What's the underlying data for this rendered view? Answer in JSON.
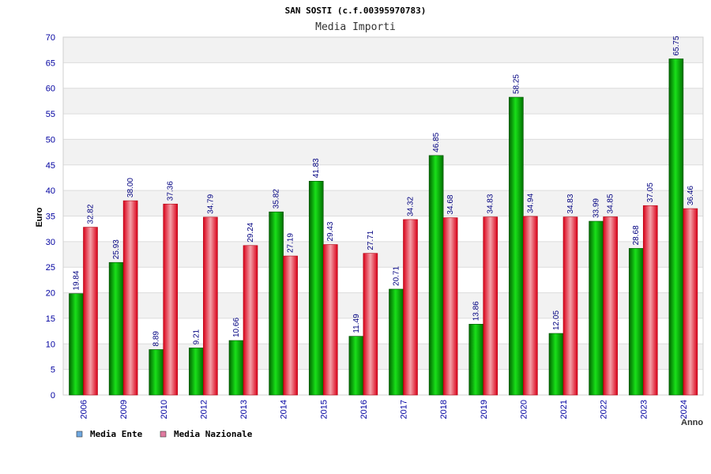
{
  "chart_data": {
    "type": "bar",
    "title": "SAN SOSTI (c.f.00395970783)",
    "subtitle": "Media Importi",
    "ylabel": "Euro",
    "xlabel": "Anno",
    "ylim": [
      0,
      70
    ],
    "ytick_step": 5,
    "grid": true,
    "legend_position": "bottom-left",
    "categories": [
      "2006",
      "2009",
      "2010",
      "2012",
      "2013",
      "2014",
      "2015",
      "2016",
      "2017",
      "2018",
      "2019",
      "2020",
      "2021",
      "2022",
      "2023",
      "2024"
    ],
    "series": [
      {
        "name": "Media Ente",
        "values": [
          19.84,
          25.93,
          8.89,
          9.21,
          10.66,
          35.82,
          41.83,
          11.49,
          20.71,
          46.85,
          13.86,
          58.25,
          12.05,
          33.99,
          28.68,
          65.75
        ],
        "labels": [
          "19.84",
          "25.93",
          "8.89",
          "9.21",
          "10.66",
          "35.82",
          "41.83",
          "11.49",
          "20.71",
          "46.85",
          "13.86",
          "58.25",
          "12.05",
          "33.99",
          "28.68",
          "65.75"
        ],
        "color": "#00c000",
        "legend_color": "#6fa8e0"
      },
      {
        "name": "Media Nazionale",
        "values": [
          32.82,
          38.0,
          37.36,
          34.79,
          29.24,
          27.19,
          29.43,
          27.71,
          34.32,
          34.68,
          34.83,
          34.94,
          34.83,
          34.85,
          37.05,
          36.46
        ],
        "labels": [
          "32.82",
          "38.00",
          "37.36",
          "34.79",
          "29.24",
          "27.19",
          "29.43",
          "27.71",
          "34.32",
          "34.68",
          "34.83",
          "34.94",
          "34.83",
          "34.85",
          "37.05",
          "36.46"
        ],
        "color": "#e81c30",
        "legend_color": "#e07aa0"
      }
    ]
  }
}
